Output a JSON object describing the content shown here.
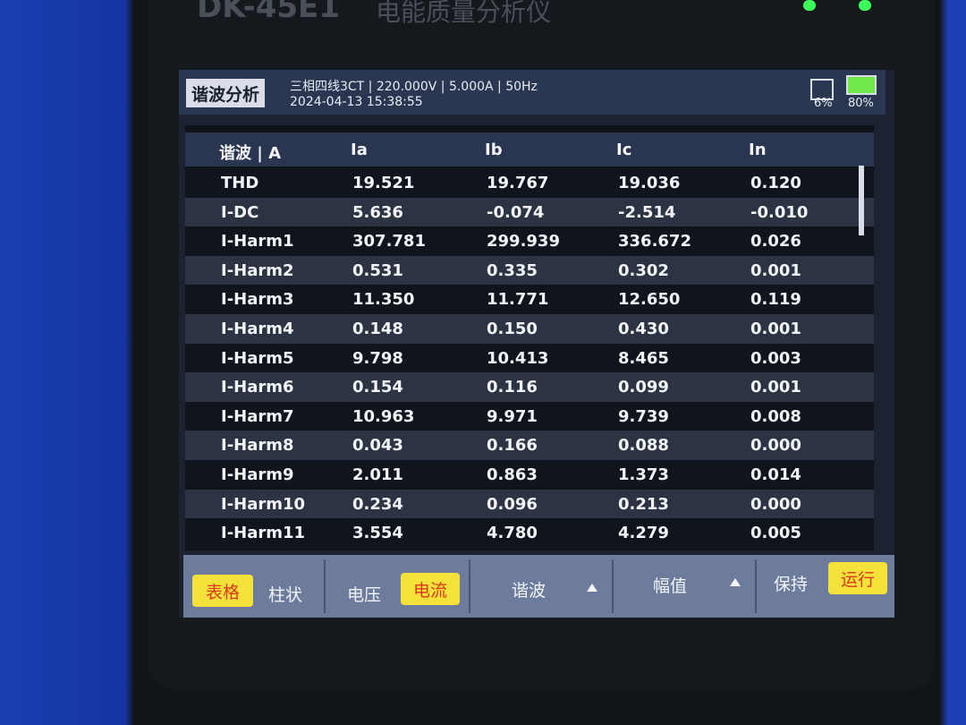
{
  "device": {
    "model": "DK-45E1",
    "name": "电能质量分析仪"
  },
  "header": {
    "title": "谐波分析",
    "info": "三相四线3CT | 220.000V | 5.000A | 50Hz",
    "datetime": "2024-04-13 15:38:55",
    "sd": "6%",
    "battery": "80%"
  },
  "table": {
    "columns": [
      "谐波 | A",
      "Ia",
      "Ib",
      "Ic",
      "In"
    ],
    "rows": [
      [
        "THD",
        "19.521",
        "19.767",
        "19.036",
        "0.120"
      ],
      [
        "I-DC",
        "5.636",
        "-0.074",
        "-2.514",
        "-0.010"
      ],
      [
        "I-Harm1",
        "307.781",
        "299.939",
        "336.672",
        "0.026"
      ],
      [
        "I-Harm2",
        "0.531",
        "0.335",
        "0.302",
        "0.001"
      ],
      [
        "I-Harm3",
        "11.350",
        "11.771",
        "12.650",
        "0.119"
      ],
      [
        "I-Harm4",
        "0.148",
        "0.150",
        "0.430",
        "0.001"
      ],
      [
        "I-Harm5",
        "9.798",
        "10.413",
        "8.465",
        "0.003"
      ],
      [
        "I-Harm6",
        "0.154",
        "0.116",
        "0.099",
        "0.001"
      ],
      [
        "I-Harm7",
        "10.963",
        "9.971",
        "9.739",
        "0.008"
      ],
      [
        "I-Harm8",
        "0.043",
        "0.166",
        "0.088",
        "0.000"
      ],
      [
        "I-Harm9",
        "2.011",
        "0.863",
        "1.373",
        "0.014"
      ],
      [
        "I-Harm10",
        "0.234",
        "0.096",
        "0.213",
        "0.000"
      ],
      [
        "I-Harm11",
        "3.554",
        "4.780",
        "4.279",
        "0.005"
      ]
    ]
  },
  "toolbar": {
    "table": "表格",
    "bar": "柱状",
    "voltage": "电压",
    "current": "电流",
    "harmonic": "谐波",
    "amplitude": "幅值",
    "hold": "保持",
    "run": "运行"
  }
}
